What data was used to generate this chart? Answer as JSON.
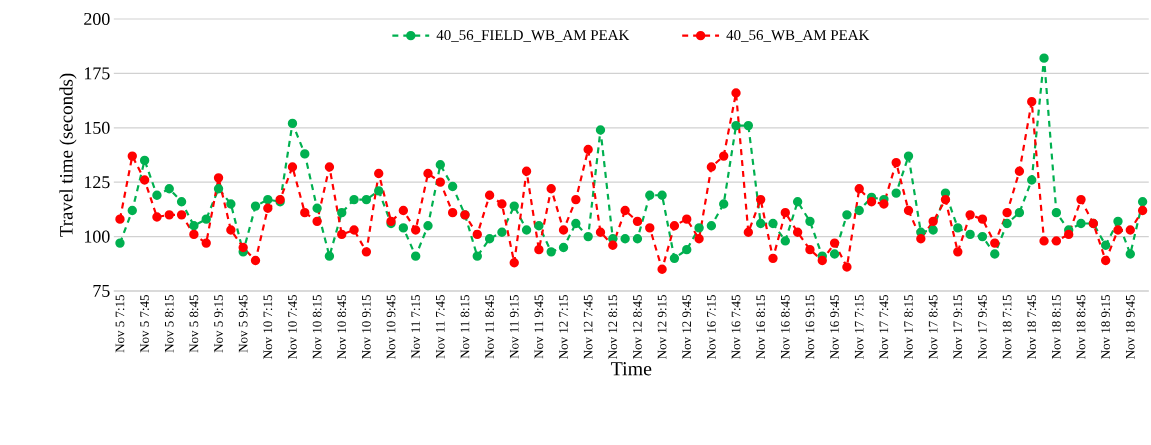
{
  "chart_data": {
    "type": "line",
    "xlabel": "Time",
    "ylabel": "Travel time (seconds)",
    "categories": [
      "Nov 5 7:15",
      null,
      "Nov 5 7:45",
      null,
      "Nov 5 8:15",
      null,
      "Nov 5 8:45",
      null,
      "Nov 5 9:15",
      null,
      "Nov 5 9:45",
      null,
      "Nov 10 7:15",
      null,
      "Nov 10 7:45",
      null,
      "Nov 10 8:15",
      null,
      "Nov 10 8:45",
      null,
      "Nov 10 9:15",
      null,
      "Nov 10 9:45",
      null,
      "Nov 11 7:15",
      null,
      "Nov 11 7:45",
      null,
      "Nov 11 8:15",
      null,
      "Nov 11 8:45",
      null,
      "Nov 11 9:15",
      null,
      "Nov 11 9:45",
      null,
      "Nov 12 7:15",
      null,
      "Nov 12 7:45",
      null,
      "Nov 12 8:15",
      null,
      "Nov 12 8:45",
      null,
      "Nov 12 9:15",
      null,
      "Nov 12 9:45",
      null,
      "Nov 16 7:15",
      null,
      "Nov 16 7:45",
      null,
      "Nov 16 8:15",
      null,
      "Nov 16 8:45",
      null,
      "Nov 16 9:15",
      null,
      "Nov 16 9:45",
      null,
      "Nov 17 7:15",
      null,
      "Nov 17 7:45",
      null,
      "Nov 17 8:15",
      null,
      "Nov 17 8:45",
      null,
      "Nov 17 9:15",
      null,
      "Nov 17 9:45",
      null,
      "Nov 18 7:15",
      null,
      "Nov 18 7:45",
      null,
      "Nov 18 8:15",
      null,
      "Nov 18 8:45",
      null,
      "Nov 18 9:15",
      null,
      "Nov 18 9:45",
      null
    ],
    "series": [
      {
        "name": "40_56_FIELD_WB_AM PEAK",
        "color": "#00b050",
        "values": [
          97,
          112,
          135,
          119,
          122,
          116,
          105,
          108,
          122,
          115,
          93,
          114,
          117,
          116,
          152,
          138,
          113,
          91,
          111,
          117,
          117,
          121,
          106,
          104,
          91,
          105,
          133,
          123,
          110,
          91,
          99,
          102,
          114,
          103,
          105,
          93,
          95,
          106,
          100,
          149,
          99,
          99,
          99,
          119,
          119,
          90,
          94,
          104,
          105,
          115,
          151,
          151,
          106,
          106,
          98,
          116,
          107,
          91,
          92,
          110,
          112,
          118,
          117,
          120,
          137,
          102,
          103,
          120,
          104,
          101,
          100,
          92,
          106,
          111,
          126,
          182,
          111,
          103,
          106,
          106,
          96,
          107,
          92,
          116
        ]
      },
      {
        "name": "40_56_WB_AM PEAK",
        "color": "#ff0000",
        "values": [
          108,
          137,
          126,
          109,
          110,
          110,
          101,
          97,
          127,
          103,
          95,
          89,
          113,
          117,
          132,
          111,
          107,
          132,
          101,
          103,
          93,
          129,
          107,
          112,
          103,
          129,
          125,
          111,
          110,
          101,
          119,
          115,
          88,
          130,
          94,
          122,
          103,
          117,
          140,
          102,
          96,
          112,
          107,
          104,
          85,
          105,
          108,
          99,
          132,
          137,
          166,
          102,
          117,
          90,
          111,
          102,
          94,
          89,
          97,
          86,
          122,
          116,
          115,
          134,
          112,
          99,
          107,
          117,
          93,
          110,
          108,
          97,
          111,
          130,
          162,
          98,
          98,
          101,
          117,
          106,
          89,
          103,
          103,
          112
        ]
      }
    ],
    "ylim": [
      75,
      200
    ],
    "yticks": [
      75,
      100,
      125,
      150,
      175,
      200
    ],
    "grid": "y",
    "legend": "top",
    "marker": "circle",
    "line_style": "dashed"
  }
}
